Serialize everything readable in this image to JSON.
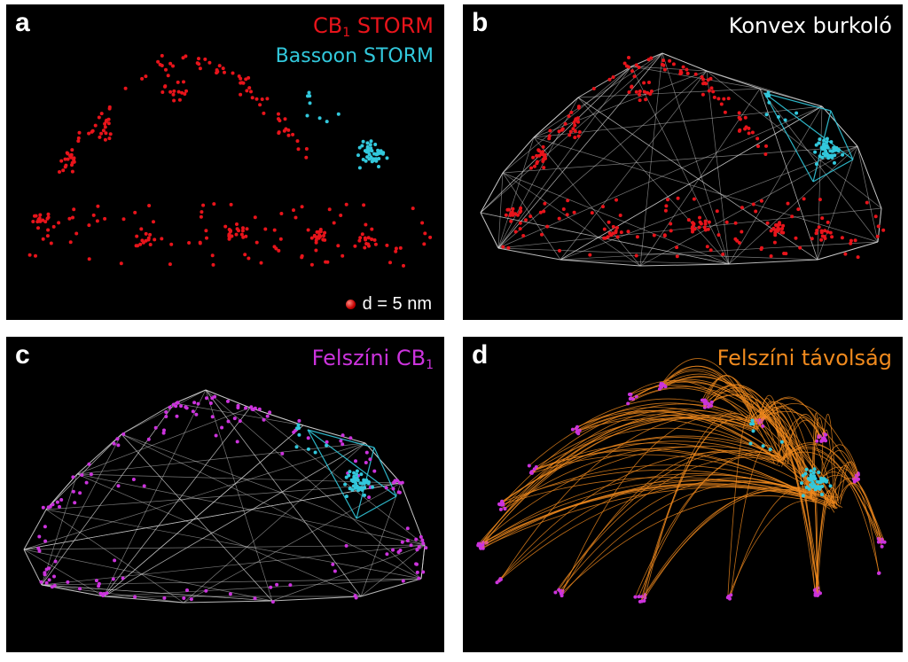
{
  "colors": {
    "cb1": "#e8141b",
    "bassoon": "#32c8dc",
    "mesh": "#d8d8d8",
    "surface": "#cc33dd",
    "distance": "#f08a1e",
    "background": "#000000"
  },
  "panels": {
    "a": {
      "label": "a",
      "title_main": "CB",
      "title_sub": "1",
      "title_rest": " STORM",
      "title2": "Bassoon STORM",
      "scale_text": "d = 5 nm"
    },
    "b": {
      "label": "b",
      "title": "Konvex burkoló"
    },
    "c": {
      "label": "c",
      "title_main": "Felszíni CB",
      "title_sub": "1"
    },
    "d": {
      "label": "d",
      "title": "Felszíni távolság"
    }
  }
}
